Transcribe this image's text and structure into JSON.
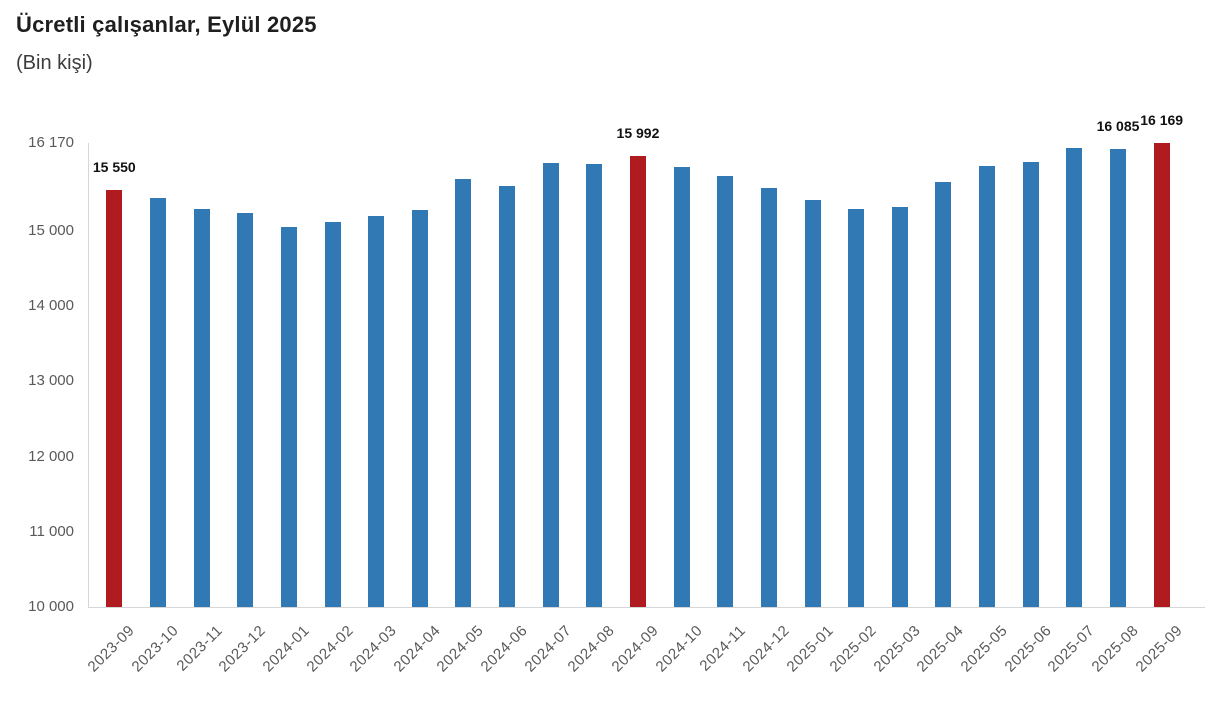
{
  "header": {
    "title": "Ücretli çalışanlar, Eylül 2025",
    "subtitle": "(Bin kişi)"
  },
  "chart_data": {
    "type": "bar",
    "title": "Ücretli çalışanlar, Eylül 2025",
    "subtitle": "(Bin kişi)",
    "unit": "Bin kişi",
    "grid": false,
    "legend_position": "none",
    "ylim": [
      10000,
      16170
    ],
    "yticks": [
      {
        "value": 16170,
        "label": "16 170"
      },
      {
        "value": 15000,
        "label": "15 000"
      },
      {
        "value": 14000,
        "label": "14 000"
      },
      {
        "value": 13000,
        "label": "13 000"
      },
      {
        "value": 12000,
        "label": "12 000"
      },
      {
        "value": 11000,
        "label": "11 000"
      },
      {
        "value": 10000,
        "label": "10 000"
      }
    ],
    "categories": [
      "2023-09",
      "2023-10",
      "2023-11",
      "2023-12",
      "2024-01",
      "2024-02",
      "2024-03",
      "2024-04",
      "2024-05",
      "2024-06",
      "2024-07",
      "2024-08",
      "2024-09",
      "2024-10",
      "2024-11",
      "2024-12",
      "2025-01",
      "2025-02",
      "2025-03",
      "2025-04",
      "2025-05",
      "2025-06",
      "2025-07",
      "2025-08",
      "2025-09"
    ],
    "values": [
      15550,
      15435,
      15295,
      15235,
      15055,
      15115,
      15205,
      15285,
      15690,
      15595,
      15900,
      15885,
      15992,
      15855,
      15730,
      15575,
      15410,
      15295,
      15320,
      15650,
      15865,
      15915,
      16100,
      16085,
      16169
    ],
    "highlight_categories": [
      "2023-09",
      "2024-09",
      "2025-09"
    ],
    "data_labels": [
      {
        "category": "2023-09",
        "label": "15 550"
      },
      {
        "category": "2024-09",
        "label": "15 992"
      },
      {
        "category": "2025-08",
        "label": "16 085"
      },
      {
        "category": "2025-09",
        "label": "16 169"
      }
    ],
    "colors": {
      "bar": "#3079b5",
      "highlight": "#b01b20",
      "axis_text": "#595959",
      "data_label_text": "#111111",
      "axis_line": "#d6d6d6",
      "title_text": "#1f1f1f",
      "subtitle_text": "#3c3c3c"
    }
  }
}
